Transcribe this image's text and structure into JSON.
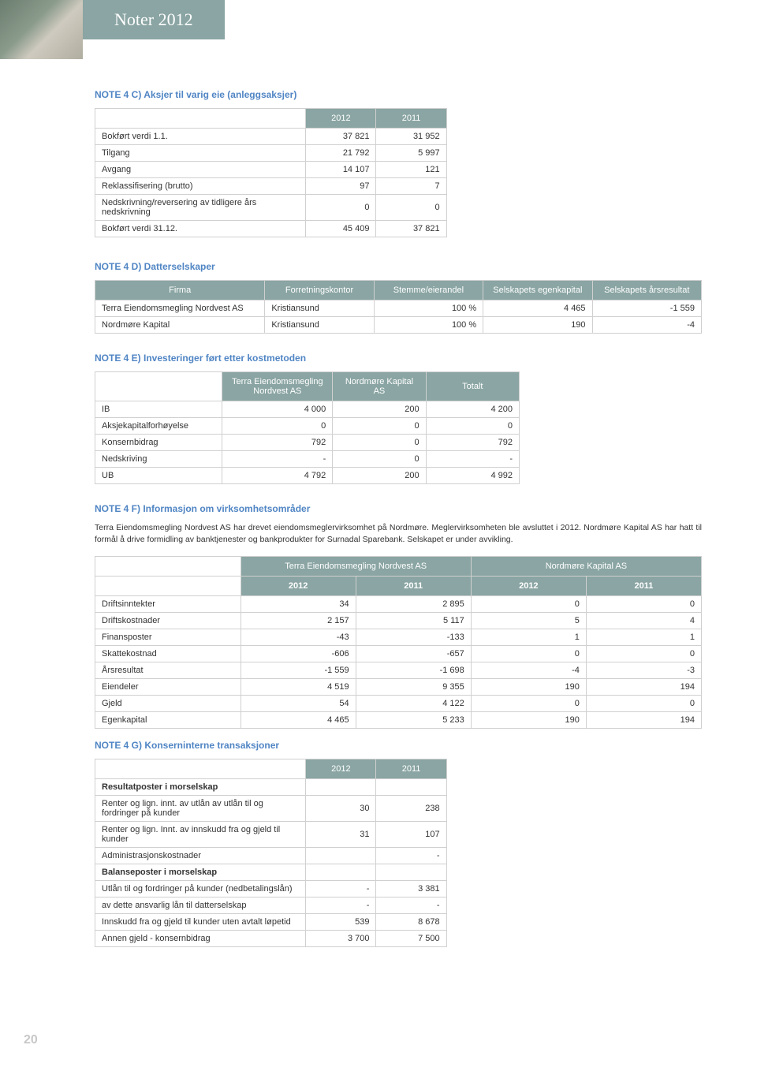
{
  "header": {
    "title": "Noter 2012"
  },
  "page_number": "20",
  "note4c": {
    "title": "NOTE 4 C)  Aksjer til varig eie (anleggsaksjer)",
    "headers": [
      "",
      "2012",
      "2011"
    ],
    "rows": [
      [
        "Bokført verdi 1.1.",
        "37 821",
        "31 952"
      ],
      [
        "Tilgang",
        "21 792",
        "5 997"
      ],
      [
        "Avgang",
        "14 107",
        "121"
      ],
      [
        "Reklassifisering (brutto)",
        "97",
        "7"
      ],
      [
        "Nedskrivning/reversering av tidligere års nedskrivning",
        "0",
        "0"
      ],
      [
        "Bokført verdi 31.12.",
        "45 409",
        "37 821"
      ]
    ]
  },
  "note4d": {
    "title": "NOTE 4 D)  Datterselskaper",
    "headers": [
      "Firma",
      "Forretningskontor",
      "Stemme/eierandel",
      "Selskapets egenkapital",
      "Selskapets årsresultat"
    ],
    "rows": [
      [
        "Terra Eiendomsmegling Nordvest AS",
        "Kristiansund",
        "100 %",
        "4 465",
        "-1 559"
      ],
      [
        "Nordmøre Kapital",
        "Kristiansund",
        "100 %",
        "190",
        "-4"
      ]
    ]
  },
  "note4e": {
    "title": "NOTE 4 E)  Investeringer ført etter kostmetoden",
    "headers": [
      "",
      "Terra Eiendomsmegling Nordvest AS",
      "Nordmøre Kapital AS",
      "Totalt"
    ],
    "rows": [
      [
        "IB",
        "4 000",
        "200",
        "4 200"
      ],
      [
        "Aksjekapitalforhøyelse",
        "0",
        "0",
        "0"
      ],
      [
        "Konsernbidrag",
        "792",
        "0",
        "792"
      ],
      [
        "Nedskriving",
        "-",
        "0",
        "-"
      ],
      [
        "UB",
        "4 792",
        "200",
        "4 992"
      ]
    ]
  },
  "note4f": {
    "title": "NOTE 4 F)  Informasjon om virksomhetsområder",
    "para": "Terra Eiendomsmegling Nordvest AS har drevet eiendomsmeglervirksomhet på Nordmøre. Meglervirksomheten ble avsluttet i 2012. Nordmøre Kapital AS har hatt til formål å drive formidling av banktjenester og bankprodukter for Surnadal Sparebank. Selskapet er under avvikling.",
    "super_headers": [
      "",
      "Terra Eiendomsmegling Nordvest AS",
      "Nordmøre Kapital AS"
    ],
    "sub_headers": [
      "",
      "2012",
      "2011",
      "2012",
      "2011"
    ],
    "rows": [
      [
        "Driftsinntekter",
        "34",
        "2 895",
        "0",
        "0"
      ],
      [
        "Driftskostnader",
        "2 157",
        "5 117",
        "5",
        "4"
      ],
      [
        "Finansposter",
        "-43",
        "-133",
        "1",
        "1"
      ],
      [
        "Skattekostnad",
        "-606",
        "-657",
        "0",
        "0"
      ],
      [
        "Årsresultat",
        "-1 559",
        "-1 698",
        "-4",
        "-3"
      ],
      [
        "Eiendeler",
        "4 519",
        "9 355",
        "190",
        "194"
      ],
      [
        "Gjeld",
        "54",
        "4 122",
        "0",
        "0"
      ],
      [
        "Egenkapital",
        "4 465",
        "5 233",
        "190",
        "194"
      ]
    ]
  },
  "note4g": {
    "title": "NOTE 4 G)  Konserninterne transaksjoner",
    "headers": [
      "",
      "2012",
      "2011"
    ],
    "rows": [
      [
        "Resultatposter i morselskap",
        "",
        ""
      ],
      [
        "Renter og lign. innt. av utlån av utlån til og fordringer på kunder",
        "30",
        "238"
      ],
      [
        "Renter og lign. Innt. av innskudd fra og gjeld til kunder",
        "31",
        "107"
      ],
      [
        "Administrasjonskostnader",
        "",
        "-"
      ],
      [
        "Balanseposter i morselskap",
        "",
        ""
      ],
      [
        "Utlån til og fordringer på kunder (nedbetalingslån)",
        "-",
        "3 381"
      ],
      [
        "av dette ansvarlig lån til datterselskap",
        "-",
        "-"
      ],
      [
        "Innskudd fra og gjeld til kunder uten avtalt løpetid",
        "539",
        "8 678"
      ],
      [
        "Annen gjeld - konsernbidrag",
        "3 700",
        "7 500"
      ]
    ],
    "bold_rows": [
      0,
      4
    ]
  }
}
